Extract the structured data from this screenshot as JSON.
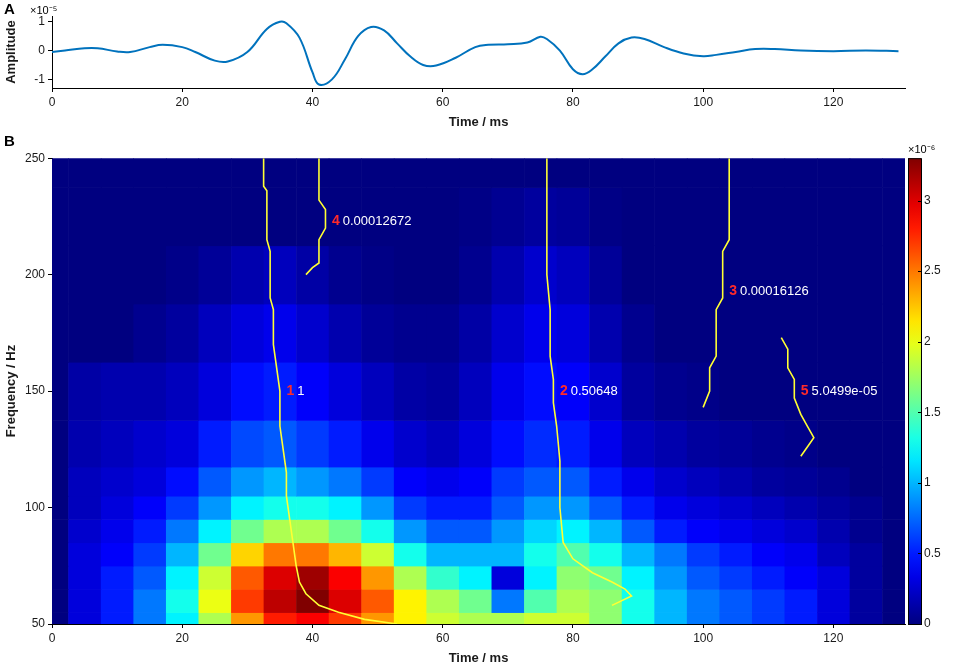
{
  "chart_data": [
    {
      "panel": "A",
      "type": "line",
      "x_label": "Time / ms",
      "y_label": "Amplitude",
      "y_exponent_label": "×10⁻⁵",
      "color": "#0072bd",
      "grid": false,
      "xlim": [
        0,
        131
      ],
      "xticks": [
        0,
        20,
        40,
        60,
        80,
        100,
        120
      ],
      "ylim": [
        -1.3,
        1.2
      ],
      "yticks": [
        -1,
        0,
        1
      ],
      "x": [
        0,
        2,
        5,
        7,
        10,
        12,
        15,
        17,
        20,
        22,
        25,
        27,
        30,
        33,
        35,
        36,
        38,
        40,
        41,
        43,
        45,
        47,
        49,
        51,
        53,
        55,
        57,
        59,
        62,
        65,
        67,
        70,
        73,
        75,
        76,
        78,
        80,
        81.5,
        83,
        85,
        87,
        89,
        91,
        94,
        97,
        100,
        102,
        105,
        108,
        111,
        115,
        120,
        125,
        130
      ],
      "values": [
        -0.05,
        0.0,
        0.08,
        0.08,
        -0.03,
        -0.05,
        0.12,
        0.2,
        0.12,
        -0.05,
        -0.35,
        -0.38,
        -0.05,
        0.75,
        1.0,
        0.95,
        0.45,
        -0.75,
        -1.18,
        -1.0,
        -0.3,
        0.5,
        0.82,
        0.7,
        0.25,
        -0.2,
        -0.5,
        -0.52,
        -0.25,
        0.12,
        0.2,
        0.22,
        0.28,
        0.48,
        0.4,
        0.0,
        -0.65,
        -0.82,
        -0.65,
        -0.2,
        0.25,
        0.45,
        0.4,
        0.12,
        -0.1,
        -0.2,
        -0.15,
        -0.05,
        0.05,
        0.05,
        0.0,
        -0.02,
        0.0,
        -0.02
      ]
    },
    {
      "panel": "B",
      "type": "heatmap",
      "x_label": "Time / ms",
      "y_label": "Frequency / Hz",
      "grid": false,
      "xlim": [
        0,
        131
      ],
      "xticks": [
        0,
        20,
        40,
        60,
        80,
        100,
        120
      ],
      "ylim": [
        50,
        250
      ],
      "yticks": [
        50,
        100,
        150,
        200,
        250
      ],
      "x": [
        0,
        5,
        10,
        15,
        20,
        25,
        30,
        35,
        40,
        45,
        50,
        55,
        60,
        65,
        70,
        75,
        80,
        85,
        90,
        95,
        100,
        105,
        110,
        115,
        120,
        125,
        130
      ],
      "y": [
        50,
        60,
        70,
        80,
        90,
        100,
        110,
        125,
        150,
        175,
        200,
        225,
        250
      ],
      "cells": [
        [
          0,
          0.3,
          0.5,
          0.8,
          1.2,
          1.8,
          2.4,
          2.8,
          2.9,
          2.7,
          2.4,
          2.1,
          1.9,
          1.8,
          1.8,
          1.9,
          1.9,
          1.7,
          1.3,
          1.0,
          0.8,
          0.7,
          0.6,
          0.5,
          0.3,
          0.1,
          0
        ],
        [
          0,
          0.3,
          0.5,
          0.8,
          1.3,
          2.0,
          2.7,
          3.1,
          3.3,
          3.0,
          2.6,
          2.1,
          1.8,
          1.6,
          0.8,
          1.5,
          1.8,
          1.7,
          1.3,
          1.0,
          0.8,
          0.7,
          0.6,
          0.5,
          0.3,
          0.1,
          0
        ],
        [
          0,
          0.3,
          0.5,
          0.7,
          1.2,
          1.9,
          2.6,
          3.0,
          3.2,
          2.9,
          2.4,
          1.8,
          1.4,
          1.2,
          0.3,
          1.2,
          1.7,
          1.6,
          1.2,
          0.9,
          0.7,
          0.6,
          0.5,
          0.4,
          0.3,
          0.1,
          0
        ],
        [
          0,
          0.3,
          0.4,
          0.6,
          1.0,
          1.6,
          2.2,
          2.5,
          2.5,
          2.3,
          1.9,
          1.3,
          1.0,
          1.0,
          1.0,
          1.3,
          1.5,
          1.3,
          1.0,
          0.8,
          0.6,
          0.5,
          0.4,
          0.35,
          0.2,
          0.1,
          0
        ],
        [
          0,
          0.25,
          0.35,
          0.5,
          0.8,
          1.2,
          1.6,
          1.8,
          1.8,
          1.6,
          1.3,
          0.9,
          0.7,
          0.7,
          0.9,
          1.1,
          1.2,
          1.0,
          0.7,
          0.5,
          0.4,
          0.35,
          0.3,
          0.25,
          0.15,
          0.05,
          0
        ],
        [
          0,
          0.2,
          0.3,
          0.4,
          0.6,
          0.9,
          1.2,
          1.3,
          1.3,
          1.2,
          0.9,
          0.6,
          0.5,
          0.5,
          0.7,
          0.9,
          0.9,
          0.7,
          0.5,
          0.35,
          0.3,
          0.25,
          0.2,
          0.15,
          0.1,
          0.05,
          0
        ],
        [
          0,
          0.2,
          0.25,
          0.3,
          0.45,
          0.7,
          0.9,
          1.0,
          0.9,
          0.8,
          0.6,
          0.4,
          0.35,
          0.4,
          0.6,
          0.7,
          0.7,
          0.5,
          0.35,
          0.25,
          0.2,
          0.15,
          0.1,
          0.08,
          0.05,
          0,
          0
        ],
        [
          0,
          0.15,
          0.2,
          0.25,
          0.3,
          0.5,
          0.65,
          0.7,
          0.6,
          0.5,
          0.35,
          0.25,
          0.2,
          0.3,
          0.45,
          0.55,
          0.5,
          0.35,
          0.2,
          0.15,
          0.1,
          0.08,
          0.05,
          0.03,
          0,
          0,
          0
        ],
        [
          0,
          0.12,
          0.15,
          0.15,
          0.2,
          0.3,
          0.45,
          0.5,
          0.4,
          0.3,
          0.2,
          0.12,
          0.1,
          0.2,
          0.35,
          0.45,
          0.4,
          0.25,
          0.1,
          0.05,
          0.03,
          0,
          0,
          0,
          0,
          0,
          0
        ],
        [
          0,
          0,
          0,
          0.05,
          0.1,
          0.2,
          0.3,
          0.35,
          0.25,
          0.15,
          0.08,
          0.05,
          0.05,
          0.12,
          0.25,
          0.35,
          0.3,
          0.15,
          0.05,
          0,
          0,
          0,
          0,
          0,
          0,
          0,
          0
        ],
        [
          0,
          0,
          0,
          0,
          0.03,
          0.08,
          0.15,
          0.2,
          0.12,
          0.05,
          0.02,
          0,
          0,
          0.05,
          0.15,
          0.25,
          0.2,
          0.08,
          0,
          0,
          0,
          0,
          0,
          0,
          0,
          0,
          0
        ],
        [
          0,
          0,
          0,
          0,
          0,
          0,
          0,
          0,
          0,
          0,
          0,
          0,
          0,
          0.02,
          0.06,
          0.1,
          0.08,
          0.02,
          0,
          0,
          0,
          0,
          0,
          0,
          0,
          0,
          0
        ],
        [
          0,
          0,
          0,
          0,
          0,
          0,
          0,
          0,
          0,
          0,
          0,
          0,
          0,
          0,
          0,
          0,
          0,
          0,
          0,
          0,
          0,
          0,
          0,
          0,
          0,
          0,
          0
        ]
      ],
      "colorbar": {
        "lim": [
          0,
          3.3
        ],
        "ticks": [
          0,
          0.5,
          1,
          1.5,
          2,
          2.5,
          3
        ],
        "label": "×10⁻⁶"
      },
      "ridges": [
        {
          "id": 1,
          "value": 1,
          "color": "#ffff33",
          "label_at": [
            36,
            150
          ],
          "points": [
            [
              32.5,
              250
            ],
            [
              32.5,
              238
            ],
            [
              33,
              236
            ],
            [
              33,
              215
            ],
            [
              33.5,
              210
            ],
            [
              33.5,
              190
            ],
            [
              34,
              185
            ],
            [
              34,
              170
            ],
            [
              34.5,
              160
            ],
            [
              35,
              150
            ],
            [
              35,
              135
            ],
            [
              35.5,
              125
            ],
            [
              36,
              115
            ],
            [
              36,
              105
            ],
            [
              36.5,
              95
            ],
            [
              37,
              85
            ],
            [
              37.5,
              75
            ],
            [
              38,
              68
            ],
            [
              39,
              63
            ],
            [
              41,
              58
            ],
            [
              44,
              55
            ],
            [
              48,
              52
            ],
            [
              53,
              50
            ]
          ]
        },
        {
          "id": 2,
          "value": 0.50648,
          "color": "#ffff33",
          "label_at": [
            78,
            150
          ],
          "points": [
            [
              76,
              250
            ],
            [
              76,
              200
            ],
            [
              76.5,
              185
            ],
            [
              76.5,
              165
            ],
            [
              77,
              155
            ],
            [
              77,
              145
            ],
            [
              77.5,
              135
            ],
            [
              78,
              120
            ],
            [
              78,
              100
            ],
            [
              78.5,
              85
            ],
            [
              80,
              78
            ],
            [
              83,
              72
            ],
            [
              86,
              68
            ],
            [
              88,
              65
            ],
            [
              89,
              62
            ],
            [
              86,
              58
            ]
          ]
        },
        {
          "id": 3,
          "value": 0.00016126,
          "color": "#ffff33",
          "label_at": [
            104,
            193
          ],
          "points": [
            [
              104,
              250
            ],
            [
              104,
              215
            ],
            [
              103,
              210
            ],
            [
              103,
              190
            ],
            [
              102,
              185
            ],
            [
              102,
              165
            ],
            [
              101,
              160
            ],
            [
              101,
              150
            ],
            [
              100,
              143
            ]
          ]
        },
        {
          "id": 4,
          "value": 0.00012672,
          "color": "#ffff33",
          "label_at": [
            43,
            223
          ],
          "points": [
            [
              41,
              250
            ],
            [
              41,
              232
            ],
            [
              42,
              228
            ],
            [
              42,
              220
            ],
            [
              41,
              215
            ],
            [
              41,
              205
            ],
            [
              40,
              203
            ],
            [
              39,
              200
            ]
          ]
        },
        {
          "id": 5,
          "value": 5.0499e-05,
          "value_label": "5.0499e-05",
          "color": "#ffff33",
          "label_at": [
            115,
            150
          ],
          "points": [
            [
              112,
              173
            ],
            [
              113,
              168
            ],
            [
              113,
              160
            ],
            [
              114,
              155
            ],
            [
              114,
              147
            ],
            [
              115,
              140
            ],
            [
              116,
              135
            ],
            [
              117,
              130
            ],
            [
              116,
              126
            ],
            [
              115,
              122
            ]
          ]
        }
      ]
    }
  ]
}
